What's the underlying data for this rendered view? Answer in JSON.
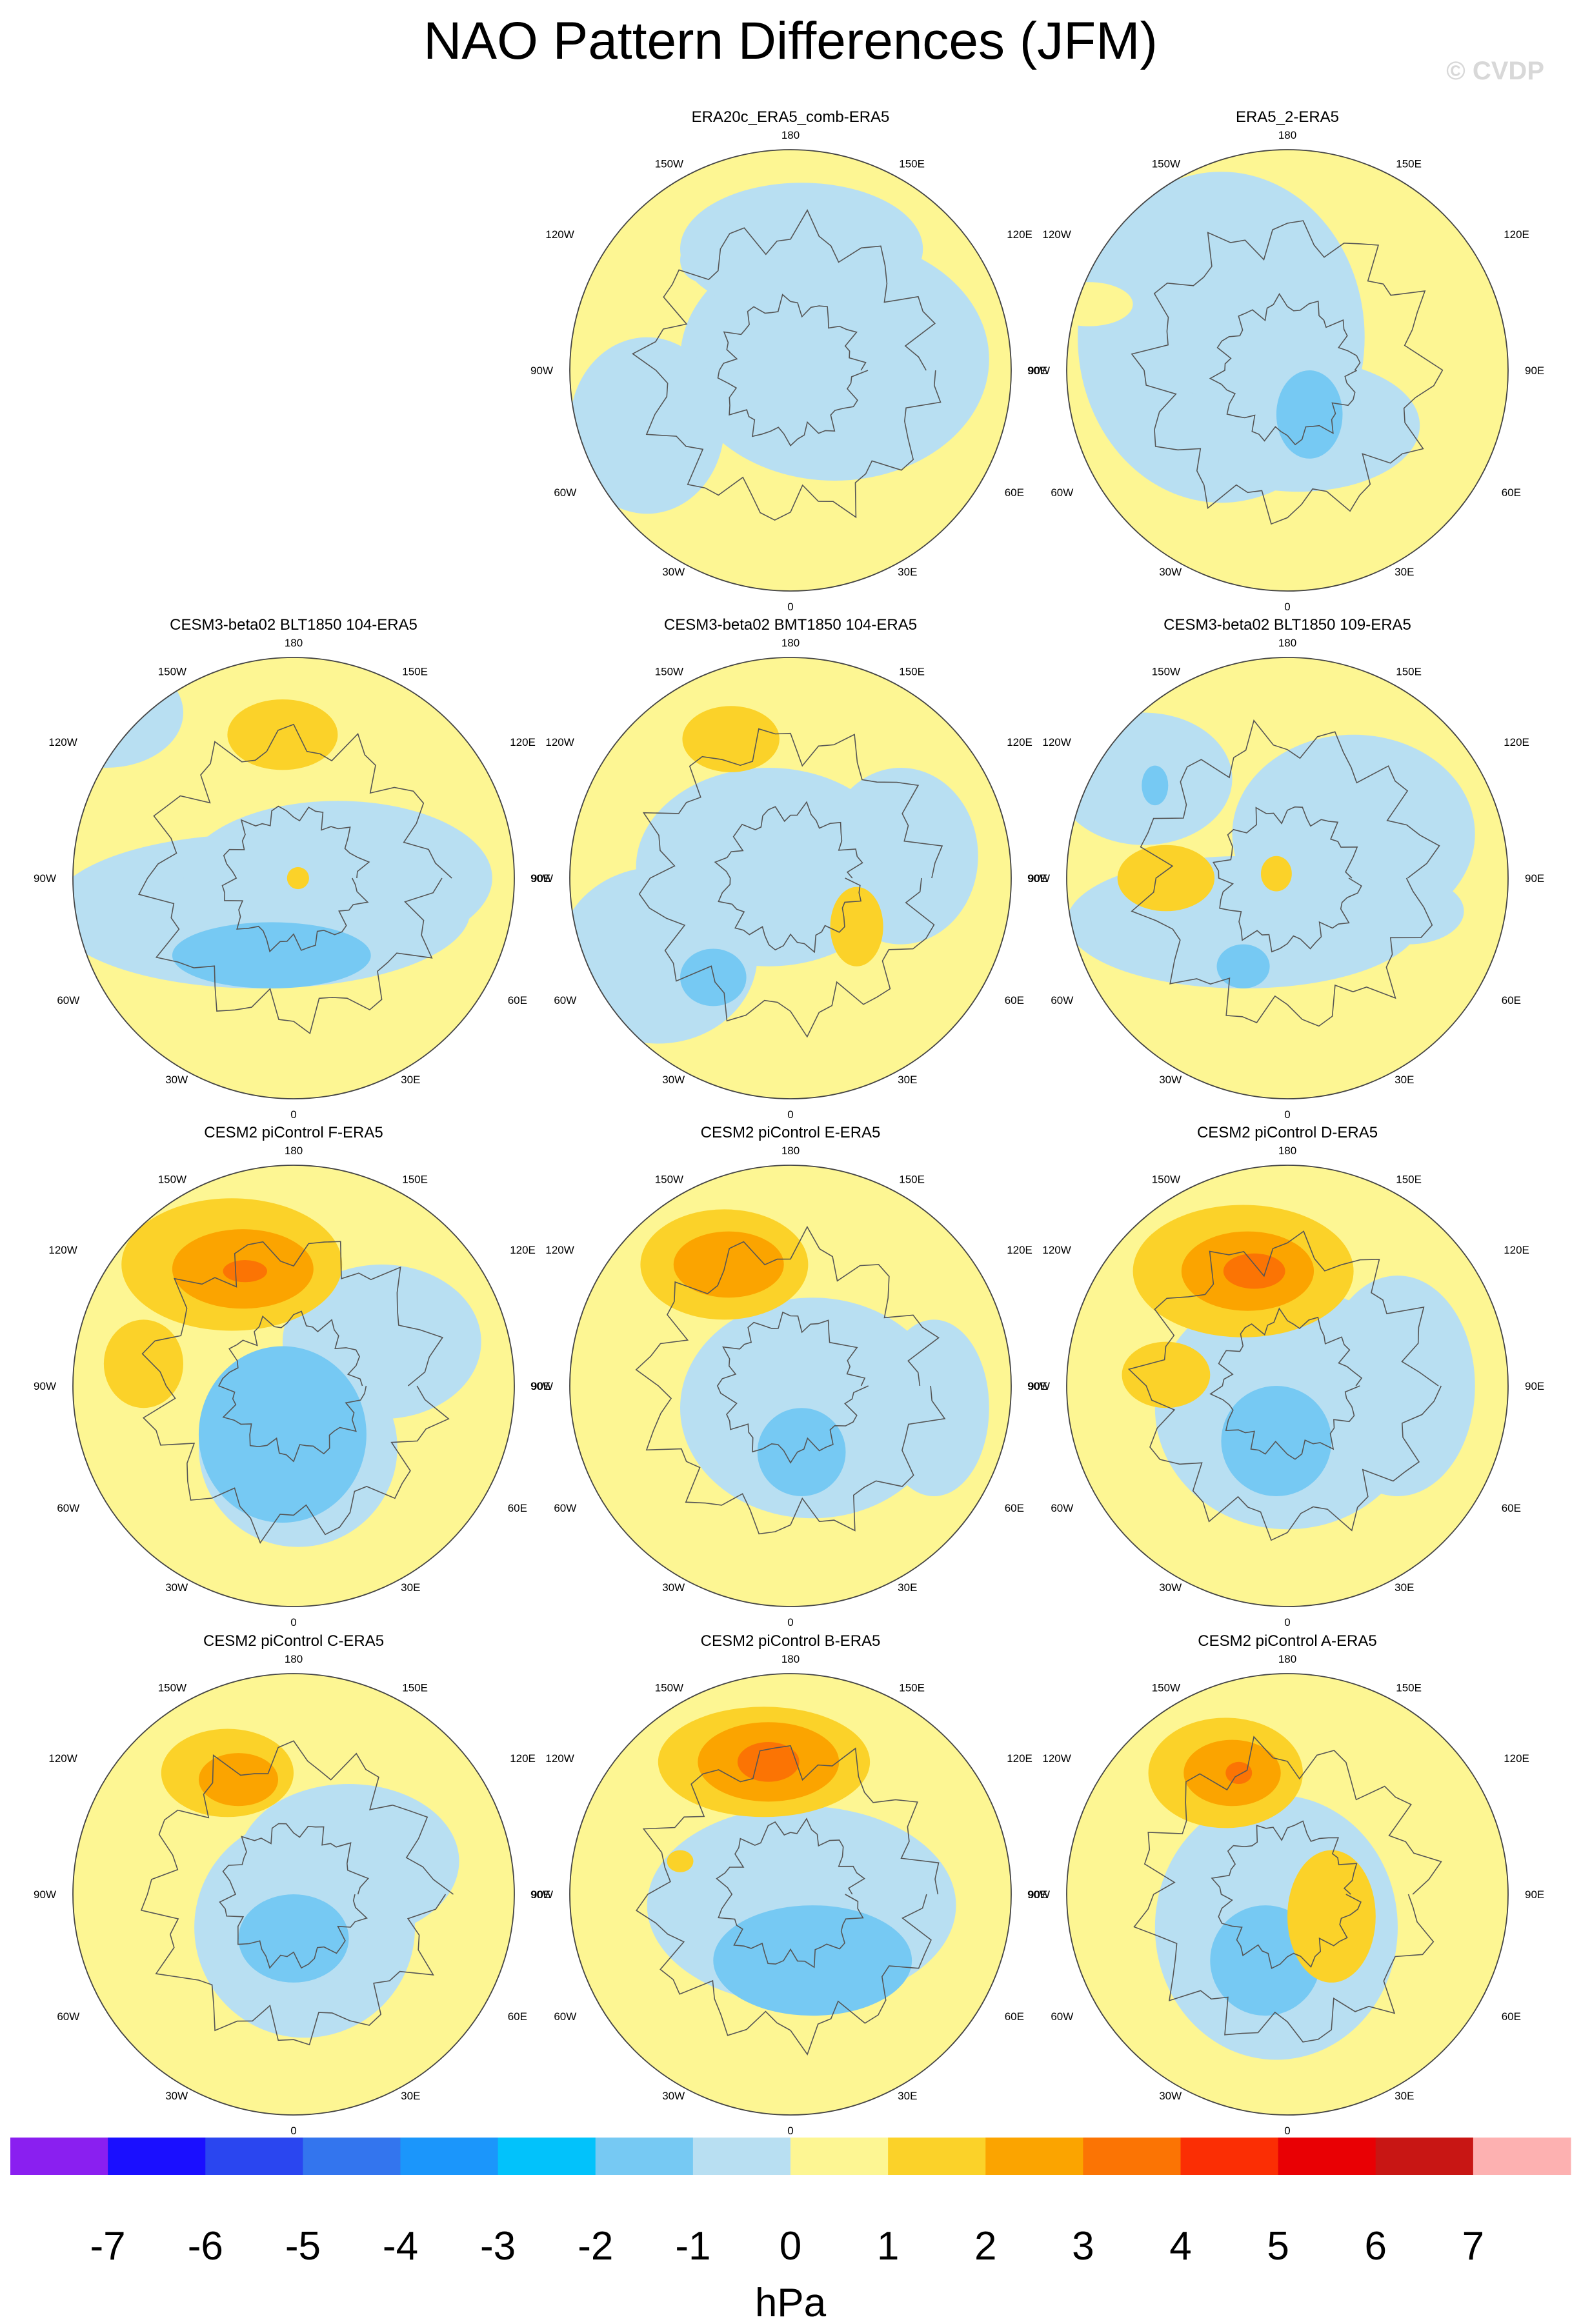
{
  "title": "NAO Pattern Differences (JFM)",
  "watermark": "© CVDP",
  "longitude_labels": {
    "top": "180",
    "bottom": "0",
    "left": "90W",
    "right": "90E",
    "upper_left_1": "150W",
    "upper_left_2": "120W",
    "upper_right_1": "150E",
    "upper_right_2": "120E",
    "lower_left_1": "60W",
    "lower_left_2": "30W",
    "lower_right_1": "60E",
    "lower_right_2": "30E"
  },
  "panels": [
    {
      "title": "ERA20c_ERA5_comb-ERA5",
      "row": 0,
      "col": 1,
      "max_anomaly_hpa": 0.8,
      "min_anomaly_hpa": -0.8
    },
    {
      "title": "ERA5_2-ERA5",
      "row": 0,
      "col": 2,
      "max_anomaly_hpa": 0.8,
      "min_anomaly_hpa": -1.5
    },
    {
      "title": "CESM3-beta02 BLT1850 104-ERA5",
      "row": 1,
      "col": 0,
      "max_anomaly_hpa": 1.6,
      "min_anomaly_hpa": -1.6
    },
    {
      "title": "CESM3-beta02 BMT1850 104-ERA5",
      "row": 1,
      "col": 1,
      "max_anomaly_hpa": 1.6,
      "min_anomaly_hpa": -1.6
    },
    {
      "title": "CESM3-beta02 BLT1850 109-ERA5",
      "row": 1,
      "col": 2,
      "max_anomaly_hpa": 1.4,
      "min_anomaly_hpa": -1.4
    },
    {
      "title": "CESM2 piControl F-ERA5",
      "row": 2,
      "col": 0,
      "max_anomaly_hpa": 3.5,
      "min_anomaly_hpa": -1.8
    },
    {
      "title": "CESM2 piControl E-ERA5",
      "row": 2,
      "col": 1,
      "max_anomaly_hpa": 2.6,
      "min_anomaly_hpa": -1.5
    },
    {
      "title": "CESM2 piControl D-ERA5",
      "row": 2,
      "col": 2,
      "max_anomaly_hpa": 3.6,
      "min_anomaly_hpa": -1.5
    },
    {
      "title": "CESM2 piControl C-ERA5",
      "row": 3,
      "col": 0,
      "max_anomaly_hpa": 2.5,
      "min_anomaly_hpa": -1.5
    },
    {
      "title": "CESM2 piControl B-ERA5",
      "row": 3,
      "col": 1,
      "max_anomaly_hpa": 3.4,
      "min_anomaly_hpa": -1.6
    },
    {
      "title": "CESM2 piControl A-ERA5",
      "row": 3,
      "col": 2,
      "max_anomaly_hpa": 2.6,
      "min_anomaly_hpa": -1.6
    }
  ],
  "colorbar": {
    "unit": "hPa",
    "tick_labels": [
      "-7",
      "-6",
      "-5",
      "-4",
      "-3",
      "-2",
      "-1",
      "0",
      "1",
      "2",
      "3",
      "4",
      "5",
      "6",
      "7"
    ],
    "colors": [
      "#8a1ff0",
      "#1a0fff",
      "#2a46f0",
      "#3375ee",
      "#1b96fb",
      "#02c2fb",
      "#76c9f3",
      "#b8dff2",
      "#fdf693",
      "#fbd229",
      "#fba400",
      "#fb7404",
      "#fb2e04",
      "#e90004",
      "#c81614",
      "#fdb1b1"
    ]
  }
}
